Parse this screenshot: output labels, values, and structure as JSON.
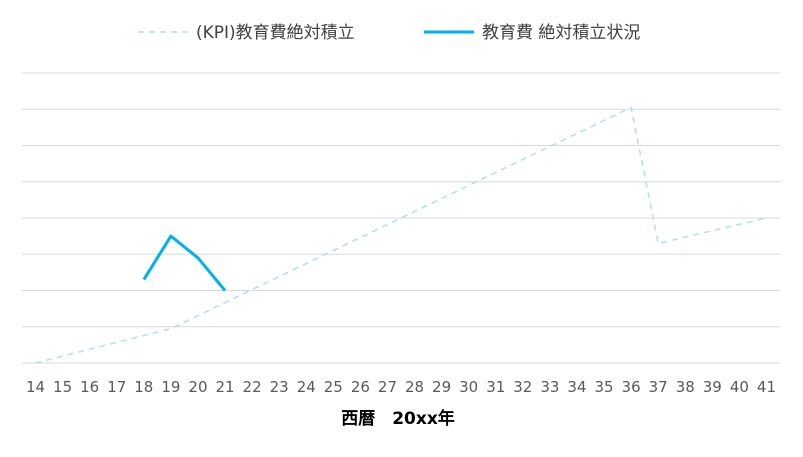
{
  "chart_data": {
    "type": "line",
    "xlabel": "西暦　20xx年",
    "ylabel": "",
    "x": [
      14,
      15,
      16,
      17,
      18,
      19,
      20,
      21,
      22,
      23,
      24,
      25,
      26,
      27,
      28,
      29,
      30,
      31,
      32,
      33,
      34,
      35,
      36,
      37,
      38,
      39,
      40,
      41
    ],
    "ylim": [
      0,
      8
    ],
    "grid": true,
    "legend": "top-center",
    "series": [
      {
        "name": "(KPI)教育費絶対積立",
        "style": "dashed",
        "color": "#b7dde8",
        "x": [
          14,
          19,
          36,
          37,
          41
        ],
        "values": [
          0,
          0.95,
          7.05,
          3.3,
          4.0
        ]
      },
      {
        "name": "教育費 絶対積立状況",
        "style": "solid",
        "color": "#00b0f0",
        "x": [
          18,
          19,
          20,
          21
        ],
        "values": [
          2.3,
          3.5,
          2.9,
          2.0
        ]
      }
    ]
  }
}
